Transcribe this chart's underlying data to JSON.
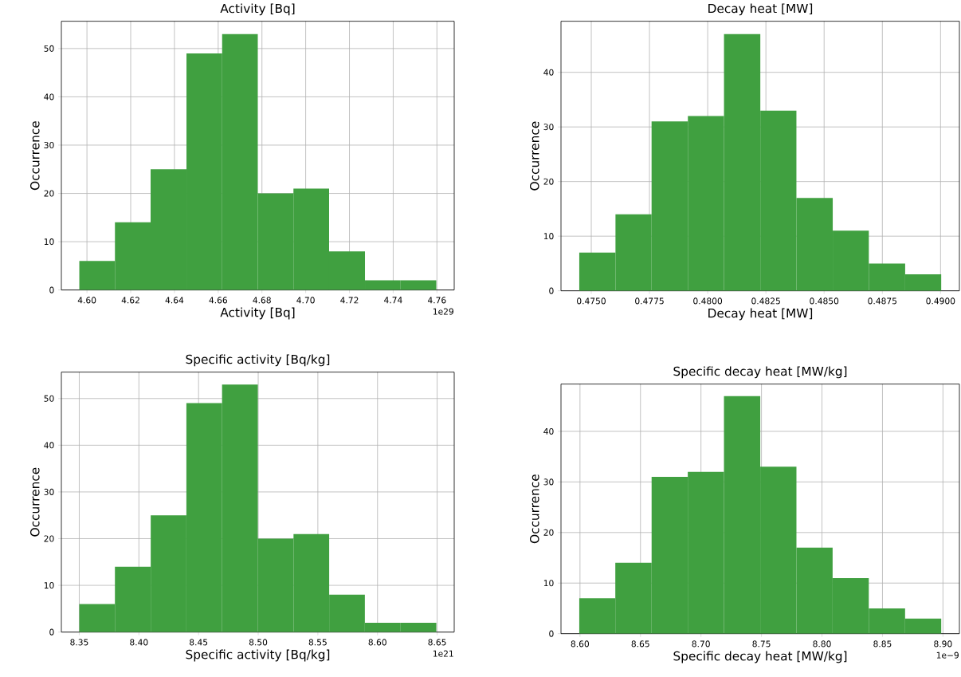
{
  "chart_data": [
    {
      "type": "histogram",
      "title": "Activity [Bq]",
      "xlabel": "Activity [Bq]",
      "ylabel": "Occurrence",
      "annotations": [
        "1e29"
      ],
      "color": "#40a040",
      "grid": true,
      "bins": [
        4.5965,
        4.6128,
        4.6291,
        4.6455,
        4.6618,
        4.6781,
        4.6944,
        4.7107,
        4.7271,
        4.7434,
        4.7597
      ],
      "values": [
        6,
        14,
        25,
        49,
        53,
        20,
        21,
        8,
        2,
        2
      ],
      "xlim": [
        4.5883,
        4.7679
      ],
      "ylim": [
        0,
        55.65
      ],
      "xticks": [
        {
          "value": 4.6,
          "label": "4.60"
        },
        {
          "value": 4.62,
          "label": "4.62"
        },
        {
          "value": 4.64,
          "label": "4.64"
        },
        {
          "value": 4.66,
          "label": "4.66"
        },
        {
          "value": 4.68,
          "label": "4.68"
        },
        {
          "value": 4.7,
          "label": "4.70"
        },
        {
          "value": 4.72,
          "label": "4.72"
        },
        {
          "value": 4.74,
          "label": "4.74"
        },
        {
          "value": 4.76,
          "label": "4.76"
        }
      ],
      "yticks": [
        0,
        10,
        20,
        30,
        40,
        50
      ]
    },
    {
      "type": "histogram",
      "title": "Decay heat [MW]",
      "xlabel": "Decay heat [MW]",
      "ylabel": "Occurrence",
      "color": "#40a040",
      "grid": true,
      "bins": [
        0.47448,
        0.47604,
        0.47759,
        0.47915,
        0.4807,
        0.48226,
        0.48381,
        0.48537,
        0.48692,
        0.48848,
        0.49003
      ],
      "values": [
        7,
        14,
        31,
        32,
        47,
        33,
        17,
        11,
        5,
        3
      ],
      "xlim": [
        0.4737,
        0.49081
      ],
      "ylim": [
        0,
        49.35
      ],
      "xticks": [
        {
          "value": 0.475,
          "label": "0.4750"
        },
        {
          "value": 0.4775,
          "label": "0.4775"
        },
        {
          "value": 0.48,
          "label": "0.4800"
        },
        {
          "value": 0.4825,
          "label": "0.4825"
        },
        {
          "value": 0.485,
          "label": "0.4850"
        },
        {
          "value": 0.4875,
          "label": "0.4875"
        },
        {
          "value": 0.49,
          "label": "0.4900"
        }
      ],
      "yticks": [
        0,
        10,
        20,
        30,
        40
      ]
    },
    {
      "type": "histogram",
      "title": "Specific activity [Bq/kg]",
      "xlabel": "Specific activity [Bq/kg]",
      "ylabel": "Occurrence",
      "annotations": [
        "1e21"
      ],
      "color": "#40a040",
      "grid": true,
      "bins": [
        8.35,
        8.3799,
        8.4099,
        8.4398,
        8.4697,
        8.4997,
        8.5296,
        8.5595,
        8.5894,
        8.6194,
        8.6493
      ],
      "values": [
        6,
        14,
        25,
        49,
        53,
        20,
        21,
        8,
        2,
        2
      ],
      "xlim": [
        8.335,
        8.6643
      ],
      "ylim": [
        0,
        55.65
      ],
      "xticks": [
        {
          "value": 8.35,
          "label": "8.35"
        },
        {
          "value": 8.4,
          "label": "8.40"
        },
        {
          "value": 8.45,
          "label": "8.45"
        },
        {
          "value": 8.5,
          "label": "8.50"
        },
        {
          "value": 8.55,
          "label": "8.55"
        },
        {
          "value": 8.6,
          "label": "8.60"
        },
        {
          "value": 8.65,
          "label": "8.65"
        }
      ],
      "yticks": [
        0,
        10,
        20,
        30,
        40,
        50
      ]
    },
    {
      "type": "histogram",
      "title": "Specific decay heat [MW/kg]",
      "xlabel": "Specific decay heat [MW/kg]",
      "ylabel": "Occurrence",
      "annotations": [
        "1e−9"
      ],
      "color": "#40a040",
      "grid": true,
      "bins": [
        8.5993,
        8.6292,
        8.6592,
        8.6891,
        8.719,
        8.749,
        8.7789,
        8.8088,
        8.8387,
        8.8687,
        8.8986
      ],
      "values": [
        7,
        14,
        31,
        32,
        47,
        33,
        17,
        11,
        5,
        3
      ],
      "xlim": [
        8.5843,
        8.9136
      ],
      "ylim": [
        0,
        49.35
      ],
      "xticks": [
        {
          "value": 8.6,
          "label": "8.60"
        },
        {
          "value": 8.65,
          "label": "8.65"
        },
        {
          "value": 8.7,
          "label": "8.70"
        },
        {
          "value": 8.75,
          "label": "8.75"
        },
        {
          "value": 8.8,
          "label": "8.80"
        },
        {
          "value": 8.85,
          "label": "8.85"
        },
        {
          "value": 8.9,
          "label": "8.90"
        }
      ],
      "yticks": [
        0,
        10,
        20,
        30,
        40
      ]
    }
  ]
}
